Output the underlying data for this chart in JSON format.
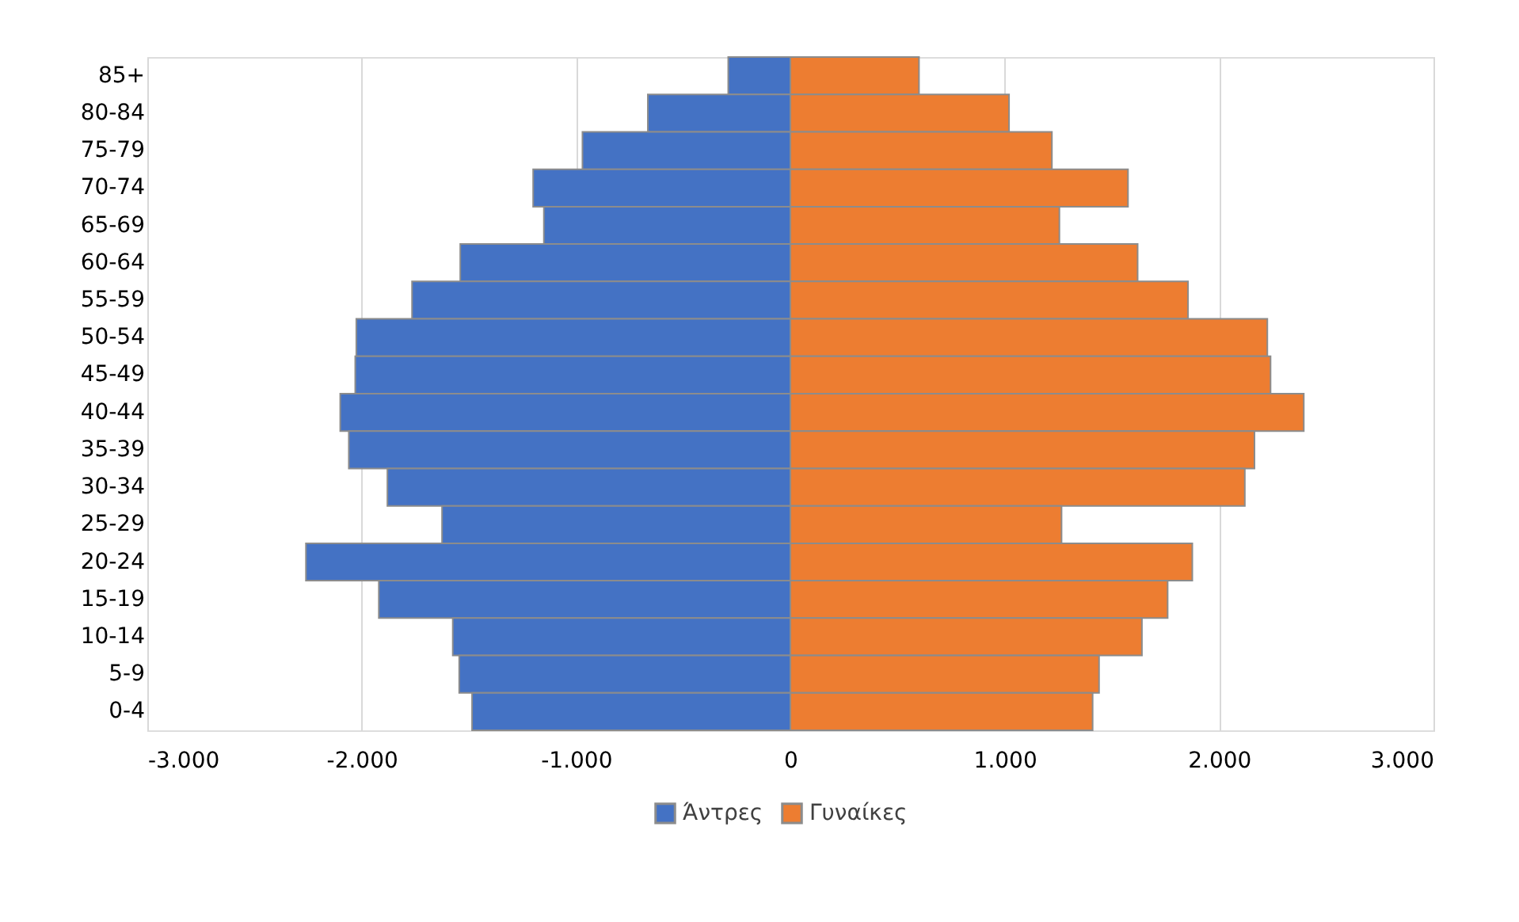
{
  "chart_data": {
    "type": "bar",
    "orientation": "horizontal",
    "stacked": true,
    "categories": [
      "85+",
      "80-84",
      "75-79",
      "70-74",
      "65-69",
      "60-64",
      "55-59",
      "50-54",
      "45-49",
      "40-44",
      "35-39",
      "30-34",
      "25-29",
      "20-24",
      "15-19",
      "10-14",
      "5-9",
      "0-4"
    ],
    "series": [
      {
        "name": "Άντρες",
        "color": "#4472c4",
        "values": [
          -290,
          -665,
          -970,
          -1200,
          -1150,
          -1540,
          -1765,
          -2025,
          -2030,
          -2100,
          -2060,
          -1880,
          -1625,
          -2260,
          -1920,
          -1575,
          -1545,
          -1485
        ]
      },
      {
        "name": "Γυναίκες",
        "color": "#ed7d31",
        "values": [
          600,
          1020,
          1220,
          1575,
          1255,
          1620,
          1855,
          2225,
          2240,
          2395,
          2165,
          2120,
          1265,
          1875,
          1760,
          1640,
          1440,
          1410
        ]
      }
    ],
    "xlim": [
      -3000,
      3000
    ],
    "xticks": [
      {
        "value": -3000,
        "label": "-3.000"
      },
      {
        "value": -2000,
        "label": "-2.000"
      },
      {
        "value": -1000,
        "label": "-1.000"
      },
      0,
      {
        "value": 1000,
        "label": "1.000"
      },
      {
        "value": 2000,
        "label": "2.000"
      },
      {
        "value": 3000,
        "label": "3.000"
      }
    ],
    "grid": "x",
    "legend": "bottom"
  }
}
